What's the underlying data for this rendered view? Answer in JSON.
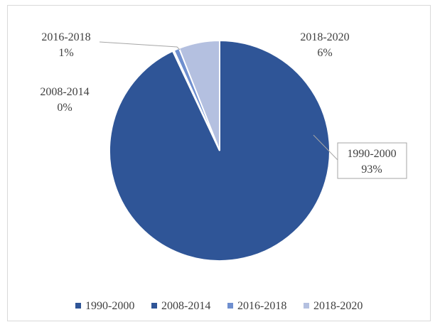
{
  "chart_data": {
    "type": "pie",
    "title": "",
    "legend_position": "bottom",
    "slices": [
      {
        "label": "1990-2000",
        "value": 93,
        "value_text": "93%",
        "color": "#2f5597"
      },
      {
        "label": "2008-2014",
        "value": 0.2,
        "value_text": "0%",
        "color": "#2f5597"
      },
      {
        "label": "2016-2018",
        "value": 0.8,
        "value_text": "1%",
        "color": "#6f8fcf"
      },
      {
        "label": "2018-2020",
        "value": 6,
        "value_text": "6%",
        "color": "#b4c0e0"
      }
    ]
  }
}
